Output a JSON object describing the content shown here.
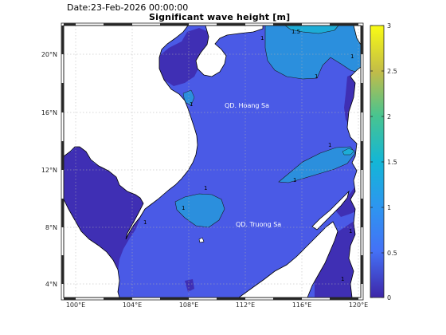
{
  "header": {
    "date_text": "Date:23-Feb-2026 00:00:00",
    "title": "Significant wave height [m]"
  },
  "map": {
    "lon_ticks": [
      "100°E",
      "104°E",
      "108°E",
      "112°E",
      "116°E",
      "120°E"
    ],
    "lat_ticks": [
      "20°N",
      "16°N",
      "12°N",
      "8°N",
      "4°N"
    ],
    "annotations": {
      "paracel": "QD. Hoang Sa",
      "spratly": "QD. Truong Sa"
    },
    "contour_labels": [
      "1.5",
      "1",
      "1",
      "1",
      "1",
      "1",
      "1",
      "1",
      "1",
      "1",
      "1",
      "1"
    ],
    "grid": true
  },
  "colorbar": {
    "ticks": [
      "3",
      "2.5",
      "2",
      "1.5",
      "1",
      "0.5",
      "0"
    ],
    "range": [
      0,
      3
    ],
    "colormap": "parula"
  },
  "colors": {
    "land": "#ffffff",
    "sea_mid": "#4a5ae6",
    "sea_low": "#3f2fb4",
    "sea_high": "#2b8fdd",
    "sea_higher": "#1dacd6",
    "frame": "#262626"
  }
}
